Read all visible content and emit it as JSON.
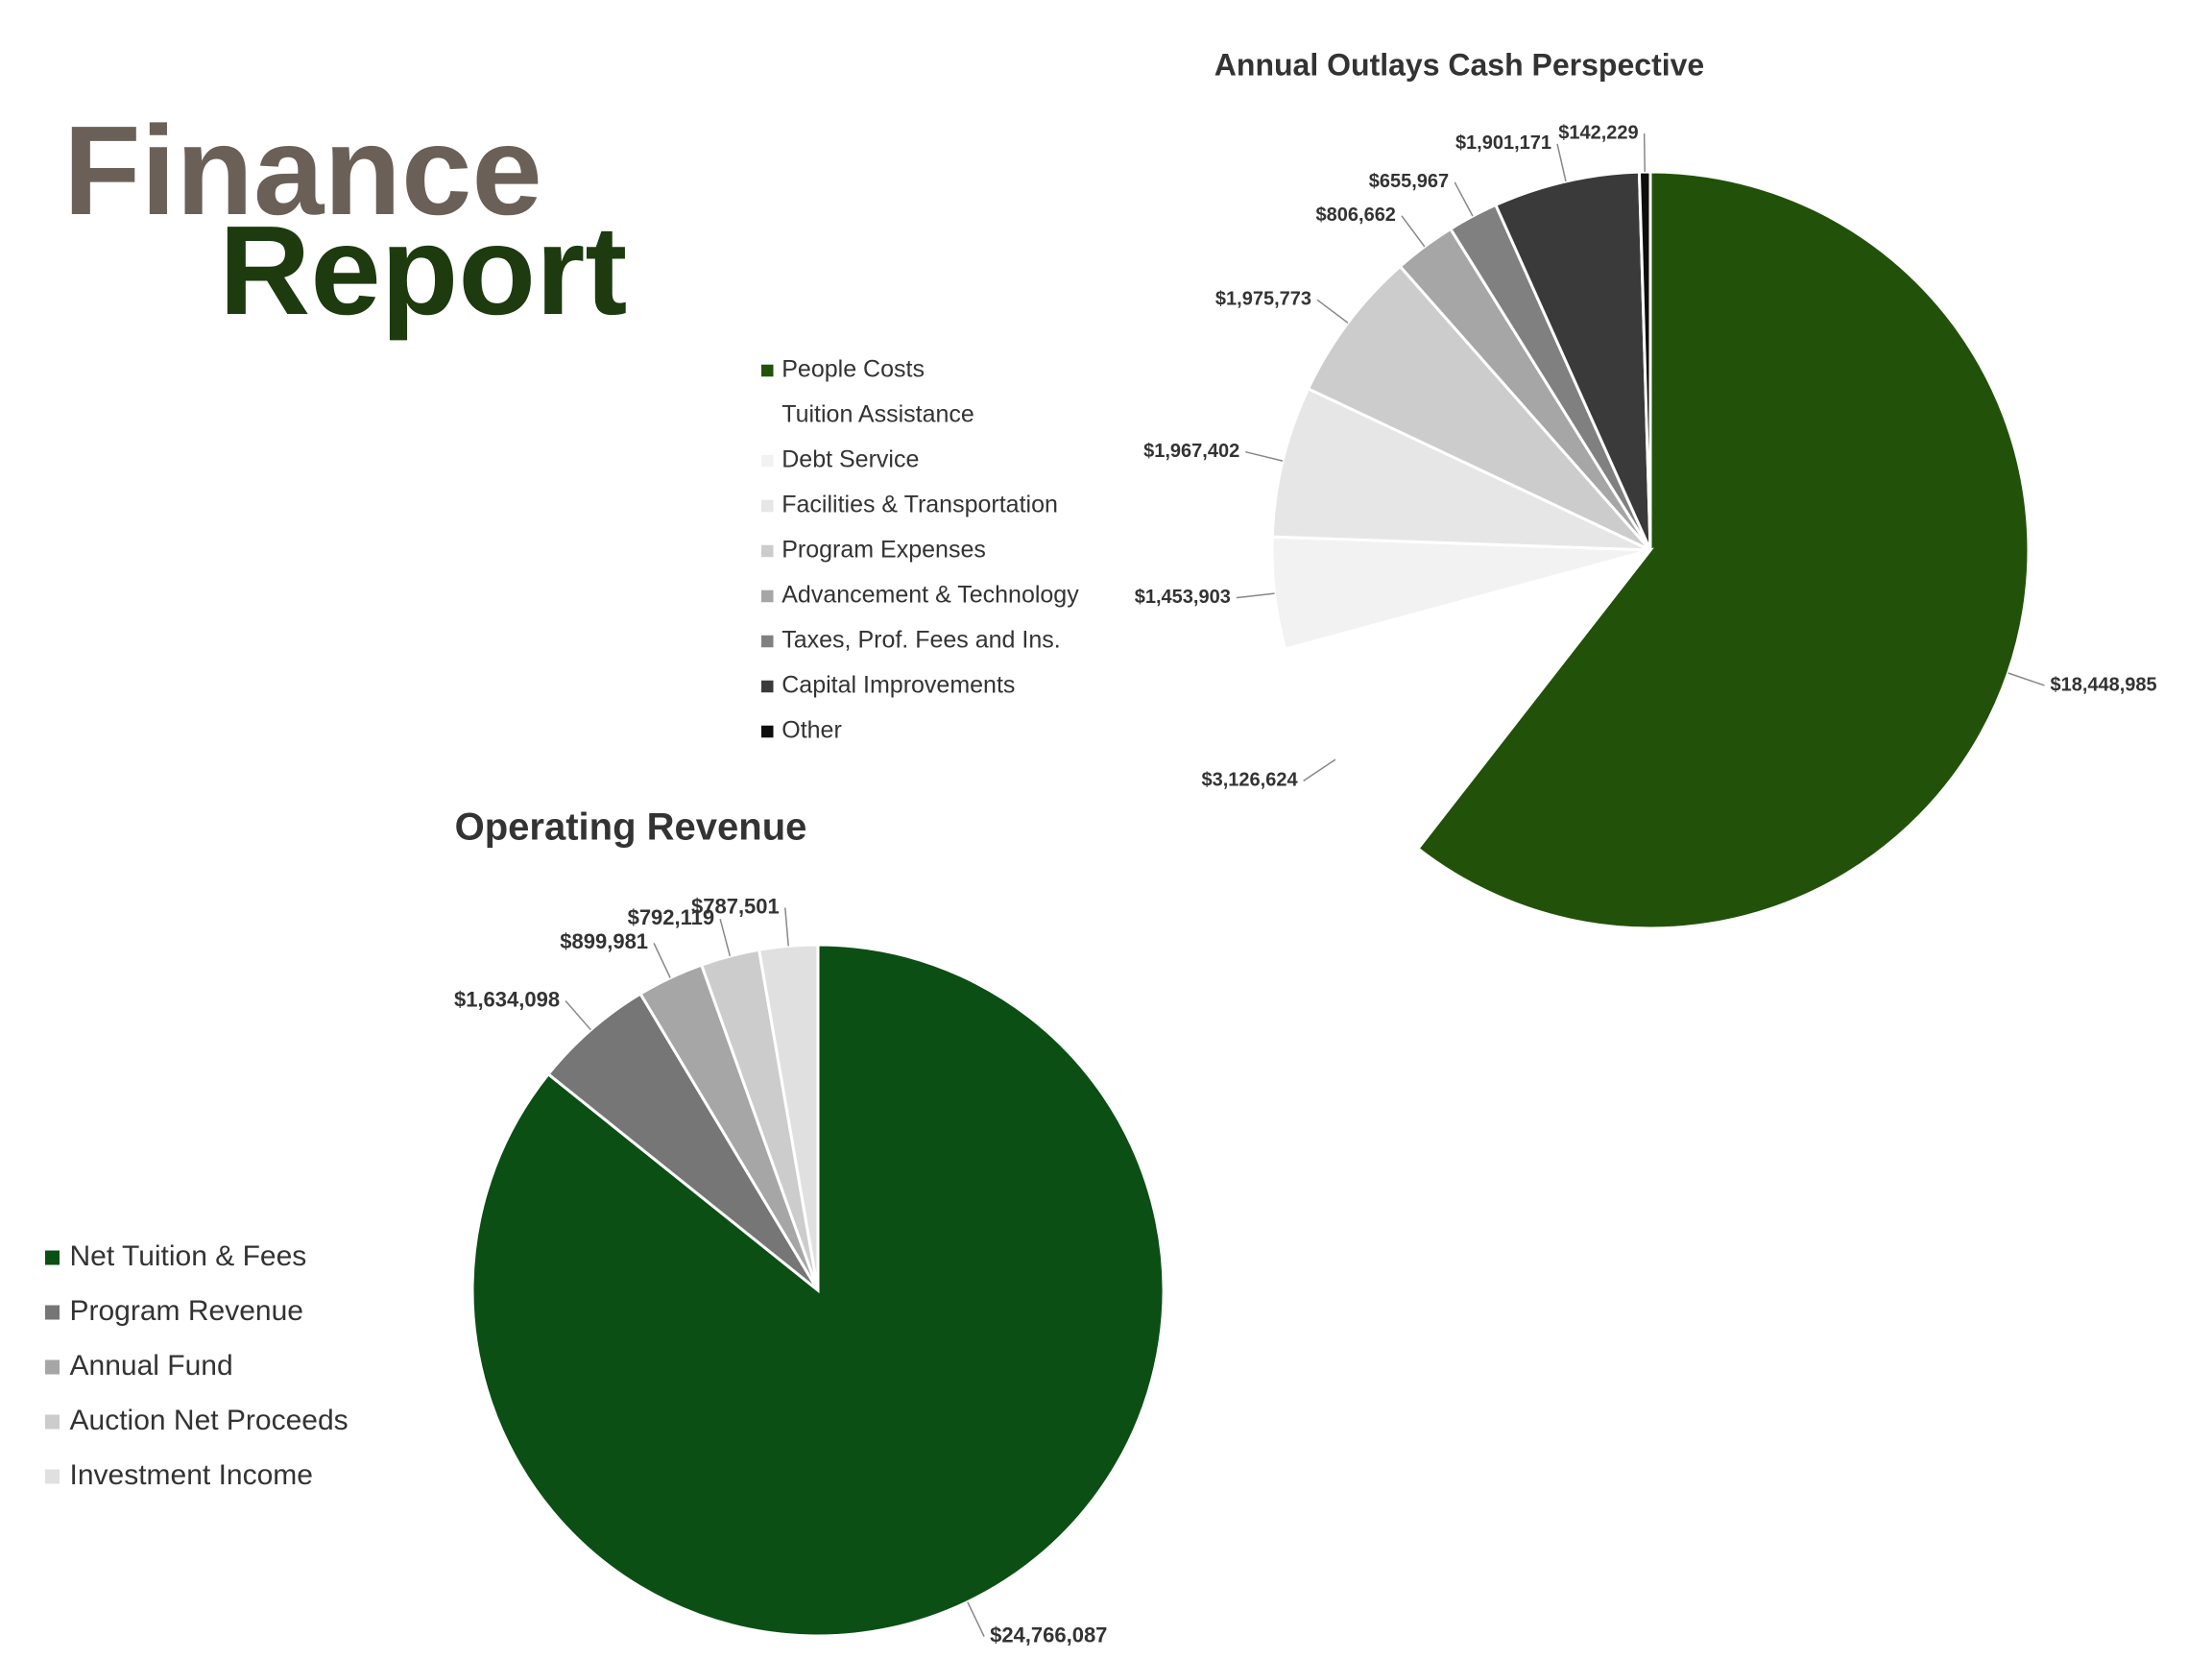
{
  "header": {
    "title_line1": "Finance",
    "title_line2": "Report"
  },
  "chart_data": [
    {
      "type": "pie",
      "title": "Annual Outlays Cash Perspective",
      "categories": [
        "People Costs",
        "Tuition Assistance",
        "Debt Service",
        "Facilities & Transportation",
        "Program Expenses",
        "Advancement & Technology",
        "Taxes, Prof. Fees and Ins.",
        "Capital Improvements",
        "Other"
      ],
      "values": [
        18448985,
        3126624,
        1453903,
        1967402,
        1975773,
        806662,
        655967,
        1901171,
        142229
      ],
      "value_labels": [
        "$18,448,985",
        "$3,126,624",
        "$1,453,903",
        "$1,967,402",
        "$1,975,773",
        "$806,662",
        "$655,967",
        "$1,901,171",
        "$142,229"
      ],
      "colors": [
        "#225209",
        "#ffffff",
        "#f2f2f2",
        "#e6e6e6",
        "#cccccc",
        "#a6a6a6",
        "#808080",
        "#3a3a3a",
        "#0d0d0d"
      ]
    },
    {
      "type": "pie",
      "title": "Operating Revenue",
      "categories": [
        "Net Tuition & Fees",
        "Program Revenue",
        "Annual Fund",
        "Auction Net Proceeds",
        "Investment Income"
      ],
      "values": [
        24766087,
        1634098,
        899981,
        792119,
        787501
      ],
      "value_labels": [
        "$24,766,087",
        "$1,634,098",
        "$899,981",
        "$792,119",
        "$787,501"
      ],
      "colors": [
        "#0b4f15",
        "#767676",
        "#a6a6a6",
        "#cccccc",
        "#e0e0e0"
      ]
    }
  ]
}
